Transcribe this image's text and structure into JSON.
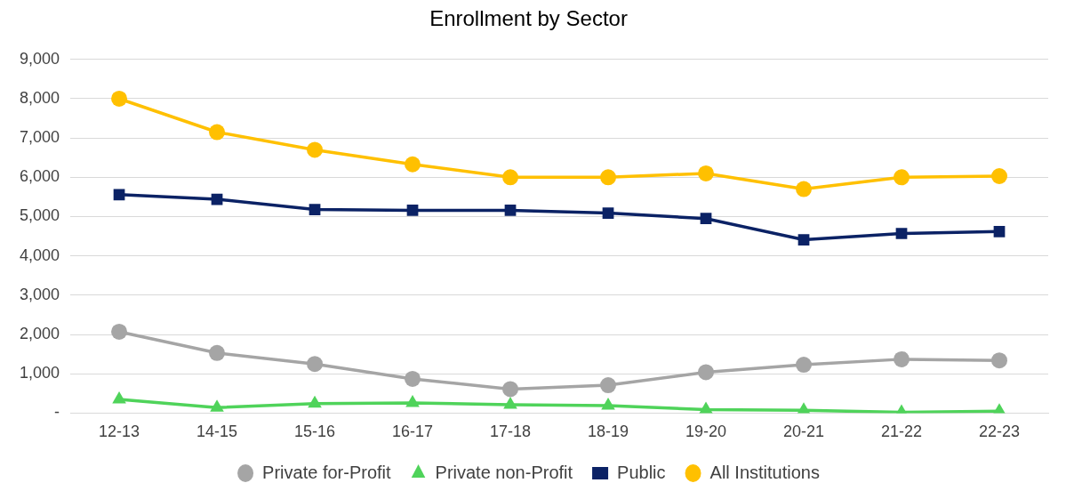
{
  "chart_data": {
    "type": "line",
    "title": "Enrollment by Sector",
    "categories": [
      "12-13",
      "14-15",
      "15-16",
      "16-17",
      "17-18",
      "18-19",
      "19-20",
      "20-21",
      "21-22",
      "22-23"
    ],
    "series": [
      {
        "name": "Private for-Profit",
        "color": "#a5a5a5",
        "marker": "circle",
        "values": [
          2070,
          1530,
          1250,
          870,
          610,
          710,
          1040,
          1230,
          1370,
          1340
        ]
      },
      {
        "name": "Private non-Profit",
        "color": "#4fd35a",
        "marker": "triangle",
        "values": [
          350,
          140,
          240,
          260,
          210,
          190,
          90,
          70,
          20,
          50
        ]
      },
      {
        "name": "Public",
        "color": "#0b2265",
        "marker": "square",
        "values": [
          5560,
          5440,
          5180,
          5160,
          5160,
          5090,
          4950,
          4410,
          4570,
          4620
        ]
      },
      {
        "name": "All Institutions",
        "color": "#ffc000",
        "marker": "circle",
        "values": [
          8000,
          7150,
          6700,
          6330,
          6000,
          6000,
          6100,
          5700,
          6000,
          6030
        ]
      }
    ],
    "ylim": [
      0,
      9000
    ],
    "yticks": [
      {
        "value": 0,
        "label": "-"
      },
      {
        "value": 1000,
        "label": "1,000"
      },
      {
        "value": 2000,
        "label": "2,000"
      },
      {
        "value": 3000,
        "label": "3,000"
      },
      {
        "value": 4000,
        "label": "4,000"
      },
      {
        "value": 5000,
        "label": "5,000"
      },
      {
        "value": 6000,
        "label": "6,000"
      },
      {
        "value": 7000,
        "label": "7,000"
      },
      {
        "value": 8000,
        "label": "8,000"
      },
      {
        "value": 9000,
        "label": "9,000"
      }
    ],
    "grid": "y",
    "legend": "bottom",
    "line_style": "solid"
  }
}
